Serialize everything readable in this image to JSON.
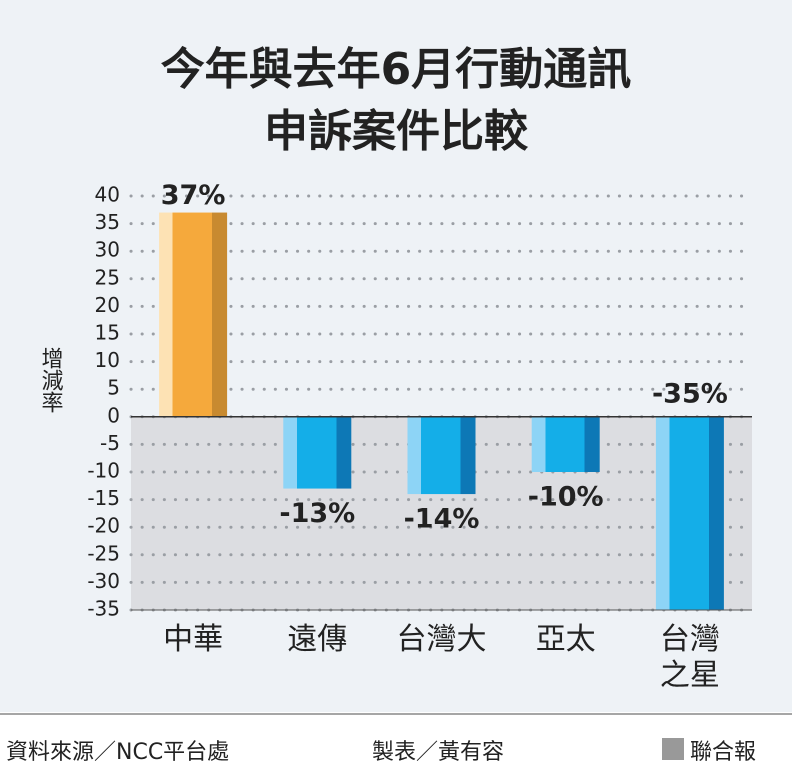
{
  "chart_data": {
    "type": "bar",
    "title": [
      "今年與去年6月行動通訊",
      "申訴案件比較"
    ],
    "y_label": "增減率",
    "categories": [
      "中華",
      "遠傳",
      "台灣大",
      "亞太",
      "台灣\n之星"
    ],
    "values": [
      37,
      -13,
      -14,
      -10,
      -35
    ],
    "value_labels": [
      "37%",
      "-13%",
      "-14%",
      "-10%",
      "-35%"
    ],
    "colors": {
      "positive": "#f5a93c",
      "negative": "#14aee8"
    },
    "ylim": [
      -35,
      40
    ],
    "yticks": [
      40,
      35,
      30,
      25,
      20,
      15,
      10,
      5,
      0,
      -5,
      -10,
      -15,
      -20,
      -25,
      -30,
      -35
    ],
    "grid": true
  },
  "source": "資料來源／NCC平台處",
  "author": "製表／黃有容",
  "publisher": "聯合報"
}
